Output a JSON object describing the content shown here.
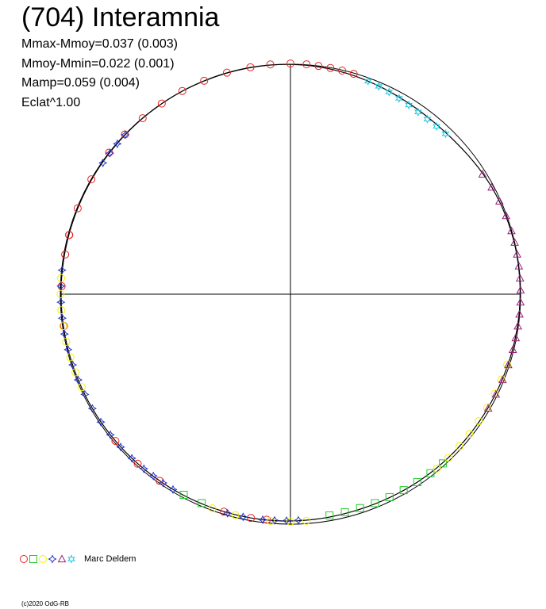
{
  "header": {
    "title": "(704) Interamnia",
    "stat_lines": [
      "Mmax-Mmoy=0.037 (0.003)",
      "Mmoy-Mmin=0.022 (0.001)",
      "Mamp=0.059 (0.004)",
      "Eclat^1.00"
    ]
  },
  "legend": {
    "author": "Marc Deldem",
    "markers": [
      {
        "shape": "circle",
        "color": "#e8211e"
      },
      {
        "shape": "square",
        "color": "#27c92b"
      },
      {
        "shape": "circle",
        "color": "#f4f200"
      },
      {
        "shape": "star4",
        "color": "#2030c8"
      },
      {
        "shape": "triangle",
        "color": "#9a1e7a"
      },
      {
        "shape": "star6",
        "color": "#22c8e0"
      }
    ]
  },
  "footer": {
    "copyright": "(c)2020 OdG-RB"
  },
  "chart_data": {
    "type": "scatter",
    "coordinate_system": "polar",
    "title": "(704) Interamnia",
    "angle_unit": "degrees from top, clockwise (rotation phase)",
    "radius_unit": "relative brightness",
    "rlim": [
      0,
      1.0
    ],
    "reference_circle_radius": 1.0,
    "axes": "crosshair through center",
    "grid": false,
    "legend_placement": "bottom-left",
    "series": [
      {
        "color": "#e8211e",
        "marker": "circle",
        "points": [
          [
            -80,
            0.994
          ],
          [
            -75,
            0.995
          ],
          [
            -68,
            0.997
          ],
          [
            -60,
            0.999
          ],
          [
            -52,
            1.0
          ],
          [
            -46,
            1.0
          ],
          [
            -40,
            0.999
          ],
          [
            -34,
            1.0
          ],
          [
            -28,
            1.001
          ],
          [
            -22,
            1.001
          ],
          [
            -16,
            1.002
          ],
          [
            -10,
            1.002
          ],
          [
            -5,
            1.003
          ],
          [
            0,
            1.003
          ],
          [
            4,
            1.002
          ],
          [
            7,
            1.0
          ],
          [
            10,
            0.999
          ],
          [
            13,
            0.998
          ],
          [
            16,
            0.997
          ],
          [
            186,
            0.986
          ],
          [
            190,
            0.988
          ],
          [
            197,
            0.989
          ],
          [
            215,
            0.991
          ],
          [
            222,
            0.992
          ],
          [
            230,
            0.993
          ],
          [
            262,
            0.994
          ],
          [
            272,
            0.995
          ],
          [
            285,
            0.996
          ]
        ]
      },
      {
        "color": "#27c92b",
        "marker": "square",
        "points": [
          [
            138,
            0.99
          ],
          [
            142,
            0.988
          ],
          [
            146,
            0.986
          ],
          [
            150,
            0.984
          ],
          [
            154,
            0.982
          ],
          [
            158,
            0.98
          ],
          [
            162,
            0.978
          ],
          [
            166,
            0.977
          ],
          [
            170,
            0.977
          ],
          [
            203,
            0.987
          ],
          [
            208,
            0.988
          ]
        ]
      },
      {
        "color": "#f4f200",
        "marker": "circle",
        "points": [
          [
            108,
            0.99
          ],
          [
            112,
            0.989
          ],
          [
            116,
            0.988
          ],
          [
            120,
            0.987
          ],
          [
            124,
            0.987
          ],
          [
            128,
            0.987
          ],
          [
            132,
            0.988
          ],
          [
            136,
            0.989
          ],
          [
            140,
            0.99
          ],
          [
            176,
            0.988
          ],
          [
            180,
            0.989
          ],
          [
            185,
            0.99
          ],
          [
            194,
            0.99
          ],
          [
            200,
            0.991
          ],
          [
            246,
            0.993
          ],
          [
            250,
            0.994
          ],
          [
            254,
            0.995
          ],
          [
            258,
            0.996
          ],
          [
            262,
            0.997
          ],
          [
            266,
            0.998
          ],
          [
            270,
            0.999
          ],
          [
            274,
            0.999
          ]
        ]
      },
      {
        "color": "#2030c8",
        "marker": "star4",
        "points": [
          [
            -55,
            0.995
          ],
          [
            -52,
            0.996
          ],
          [
            -49,
            0.997
          ],
          [
            -46,
            0.998
          ],
          [
            178,
            0.984
          ],
          [
            181,
            0.985
          ],
          [
            184,
            0.986
          ],
          [
            187,
            0.988
          ],
          [
            192,
            0.99
          ],
          [
            196,
            0.991
          ],
          [
            211,
            0.991
          ],
          [
            214,
            0.99
          ],
          [
            217,
            0.99
          ],
          [
            220,
            0.991
          ],
          [
            224,
            0.992
          ],
          [
            228,
            0.993
          ],
          [
            232,
            0.993
          ],
          [
            236,
            0.994
          ],
          [
            240,
            0.994
          ],
          [
            244,
            0.994
          ],
          [
            248,
            0.995
          ],
          [
            252,
            0.995
          ],
          [
            256,
            0.996
          ],
          [
            260,
            0.997
          ],
          [
            264,
            0.997
          ],
          [
            268,
            0.998
          ],
          [
            272,
            0.998
          ],
          [
            276,
            0.998
          ]
        ]
      },
      {
        "color": "#9a1e7a",
        "marker": "triangle",
        "points": [
          [
            58,
            0.984
          ],
          [
            62,
            0.99
          ],
          [
            66,
            0.994
          ],
          [
            70,
            0.997
          ],
          [
            74,
            0.999
          ],
          [
            77,
            1.0
          ],
          [
            80,
            1.0
          ],
          [
            83,
            1.0
          ],
          [
            86,
            1.0
          ],
          [
            89,
            1.0
          ],
          [
            92,
            1.0
          ],
          [
            95,
            0.999
          ],
          [
            98,
            0.998
          ],
          [
            101,
            0.997
          ],
          [
            104,
            0.996
          ],
          [
            108,
            0.995
          ],
          [
            112,
            0.994
          ],
          [
            116,
            0.993
          ],
          [
            120,
            0.992
          ]
        ]
      },
      {
        "color": "#22c8e0",
        "marker": "star6",
        "points": [
          [
            20,
            0.986
          ],
          [
            23,
            0.982
          ],
          [
            26,
            0.978
          ],
          [
            29,
            0.974
          ],
          [
            32,
            0.97
          ],
          [
            35,
            0.967
          ],
          [
            38,
            0.966
          ],
          [
            41,
            0.967
          ],
          [
            44,
            0.97
          ]
        ]
      }
    ]
  }
}
